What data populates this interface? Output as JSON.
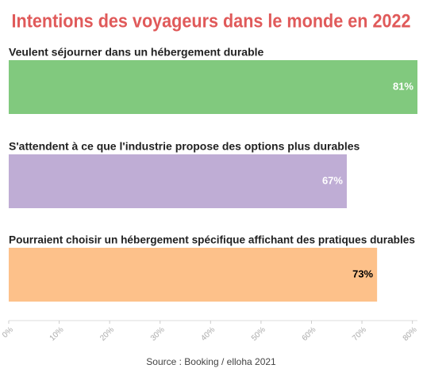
{
  "chart_data": {
    "type": "hbar",
    "title": "Intentions des voyageurs dans le monde en 2022",
    "categories": [
      "Veulent séjourner dans un hébergement durable",
      "S'attendent à ce que l'industrie propose des options plus durables",
      "Pourraient choisir un hébergement spécifique affichant des pratiques durables"
    ],
    "values": [
      81,
      67,
      73
    ],
    "value_labels": [
      "81%",
      "67%",
      "73%"
    ],
    "colors": [
      "#81c97e",
      "#bfadd5",
      "#fdc18a"
    ],
    "value_label_colors": [
      "#ffffff",
      "#ffffff",
      "#000000"
    ],
    "xlim": [
      0,
      81
    ],
    "xticks": [
      {
        "value": 0,
        "label": "0%"
      },
      {
        "value": 10,
        "label": "10%"
      },
      {
        "value": 20,
        "label": "20%"
      },
      {
        "value": 30,
        "label": "30%"
      },
      {
        "value": 40,
        "label": "40%"
      },
      {
        "value": 50,
        "label": "50%"
      },
      {
        "value": 60,
        "label": "60%"
      },
      {
        "value": 70,
        "label": "70%"
      },
      {
        "value": 80,
        "label": "80%"
      }
    ],
    "source": "Source : Booking / elloha 2021"
  }
}
